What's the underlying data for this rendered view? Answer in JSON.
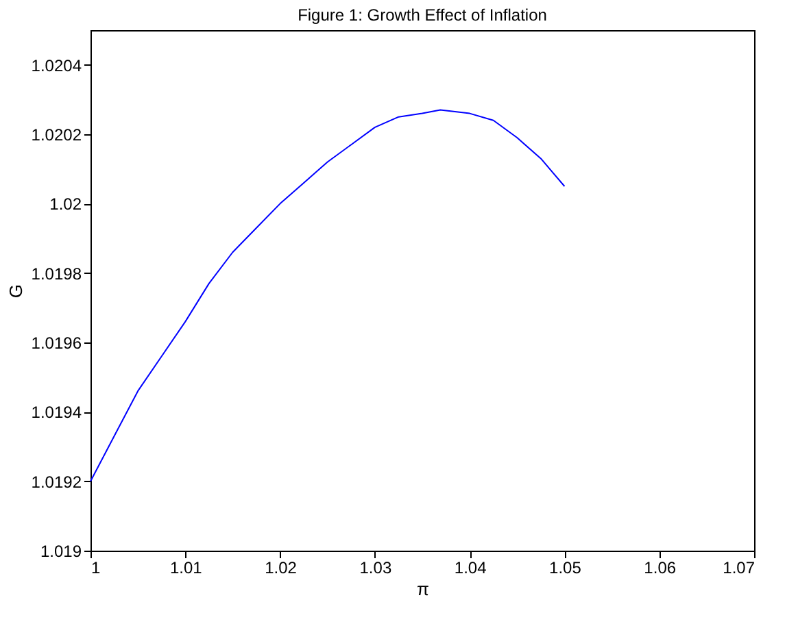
{
  "chart_data": {
    "type": "line",
    "title": "Figure 1: Growth Effect of Inflation",
    "xlabel": "π",
    "ylabel": "G",
    "x": [
      1.0,
      1.0025,
      1.005,
      1.0075,
      1.01,
      1.0125,
      1.015,
      1.0175,
      1.02,
      1.0225,
      1.025,
      1.0275,
      1.03,
      1.0325,
      1.035,
      1.0369,
      1.04,
      1.0425,
      1.045,
      1.0475,
      1.05
    ],
    "series": [
      {
        "color": "#0000ff",
        "values": [
          1.0192,
          1.01933,
          1.01946,
          1.01956,
          1.01966,
          1.01977,
          1.01986,
          1.01993,
          1.02,
          1.02006,
          1.02012,
          1.02017,
          1.02022,
          1.02025,
          1.02026,
          1.02027,
          1.02026,
          1.02024,
          1.02019,
          1.02013,
          1.02005
        ]
      }
    ],
    "xlim": [
      1.0,
      1.07
    ],
    "xticks": [
      1,
      1.01,
      1.02,
      1.03,
      1.04,
      1.05,
      1.06,
      1.07
    ],
    "ylim": [
      1.019,
      1.0205
    ],
    "yticks": [
      1.019,
      1.0192,
      1.0194,
      1.0196,
      1.0198,
      1.02,
      1.0202,
      1.0204
    ],
    "grid": false,
    "marker": "none",
    "line_style": "solid"
  }
}
